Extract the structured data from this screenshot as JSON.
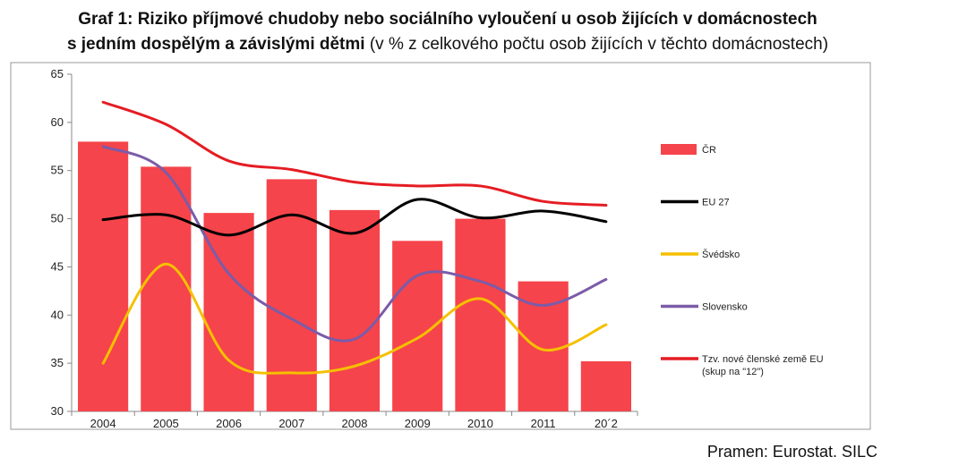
{
  "title_line1": "Graf 1: Riziko příjmové chudoby nebo sociálního vyloučení u osob žijících v domácnostech",
  "title_line2_bold": "s jedním dospělým a závislými dětmi",
  "title_line2_normal": " (v % z celkového počtu osob žijících v těchto domácnostech)",
  "source": "Pramen: Eurostat. SILC",
  "chart_data": {
    "type": "bar",
    "categories": [
      "2004",
      "2005",
      "2006",
      "2007",
      "2008",
      "2009",
      "2010",
      "2011",
      "20´2"
    ],
    "ylim": [
      30,
      65
    ],
    "yticks": [
      30,
      35,
      40,
      45,
      50,
      55,
      60,
      65
    ],
    "grid": false,
    "legend_position": "right",
    "series": [
      {
        "name": "ČR",
        "kind": "bar",
        "color": "#f5444b",
        "values": [
          58.0,
          55.4,
          50.6,
          54.1,
          50.9,
          47.7,
          50.0,
          43.5,
          35.2
        ]
      },
      {
        "name": "EU 27",
        "kind": "line",
        "color": "#000000",
        "values": [
          49.9,
          50.4,
          48.3,
          50.4,
          48.5,
          52.0,
          50.1,
          50.8,
          49.7
        ]
      },
      {
        "name": "Švédsko",
        "kind": "line",
        "color": "#f5c000",
        "values": [
          35.0,
          45.3,
          35.3,
          34.0,
          34.7,
          37.6,
          41.7,
          36.4,
          39.0
        ]
      },
      {
        "name": "Slovensko",
        "kind": "line",
        "color": "#7b5ca8",
        "values": [
          57.5,
          54.8,
          44.3,
          39.6,
          37.5,
          44.1,
          43.5,
          41.0,
          43.7
        ]
      },
      {
        "name": "Tzv. nové členské země EU (skup na \"12\")",
        "kind": "line",
        "color": "#e51c23",
        "values": [
          62.1,
          59.8,
          56.0,
          55.1,
          53.8,
          53.4,
          53.4,
          51.8,
          51.4
        ]
      }
    ],
    "legend_labels": [
      [
        "ČR"
      ],
      [
        "EU 27"
      ],
      [
        "Švédsko"
      ],
      [
        "Slovensko"
      ],
      [
        "Tzv. nové členské země EU",
        "(skup na \"12\")"
      ]
    ]
  }
}
